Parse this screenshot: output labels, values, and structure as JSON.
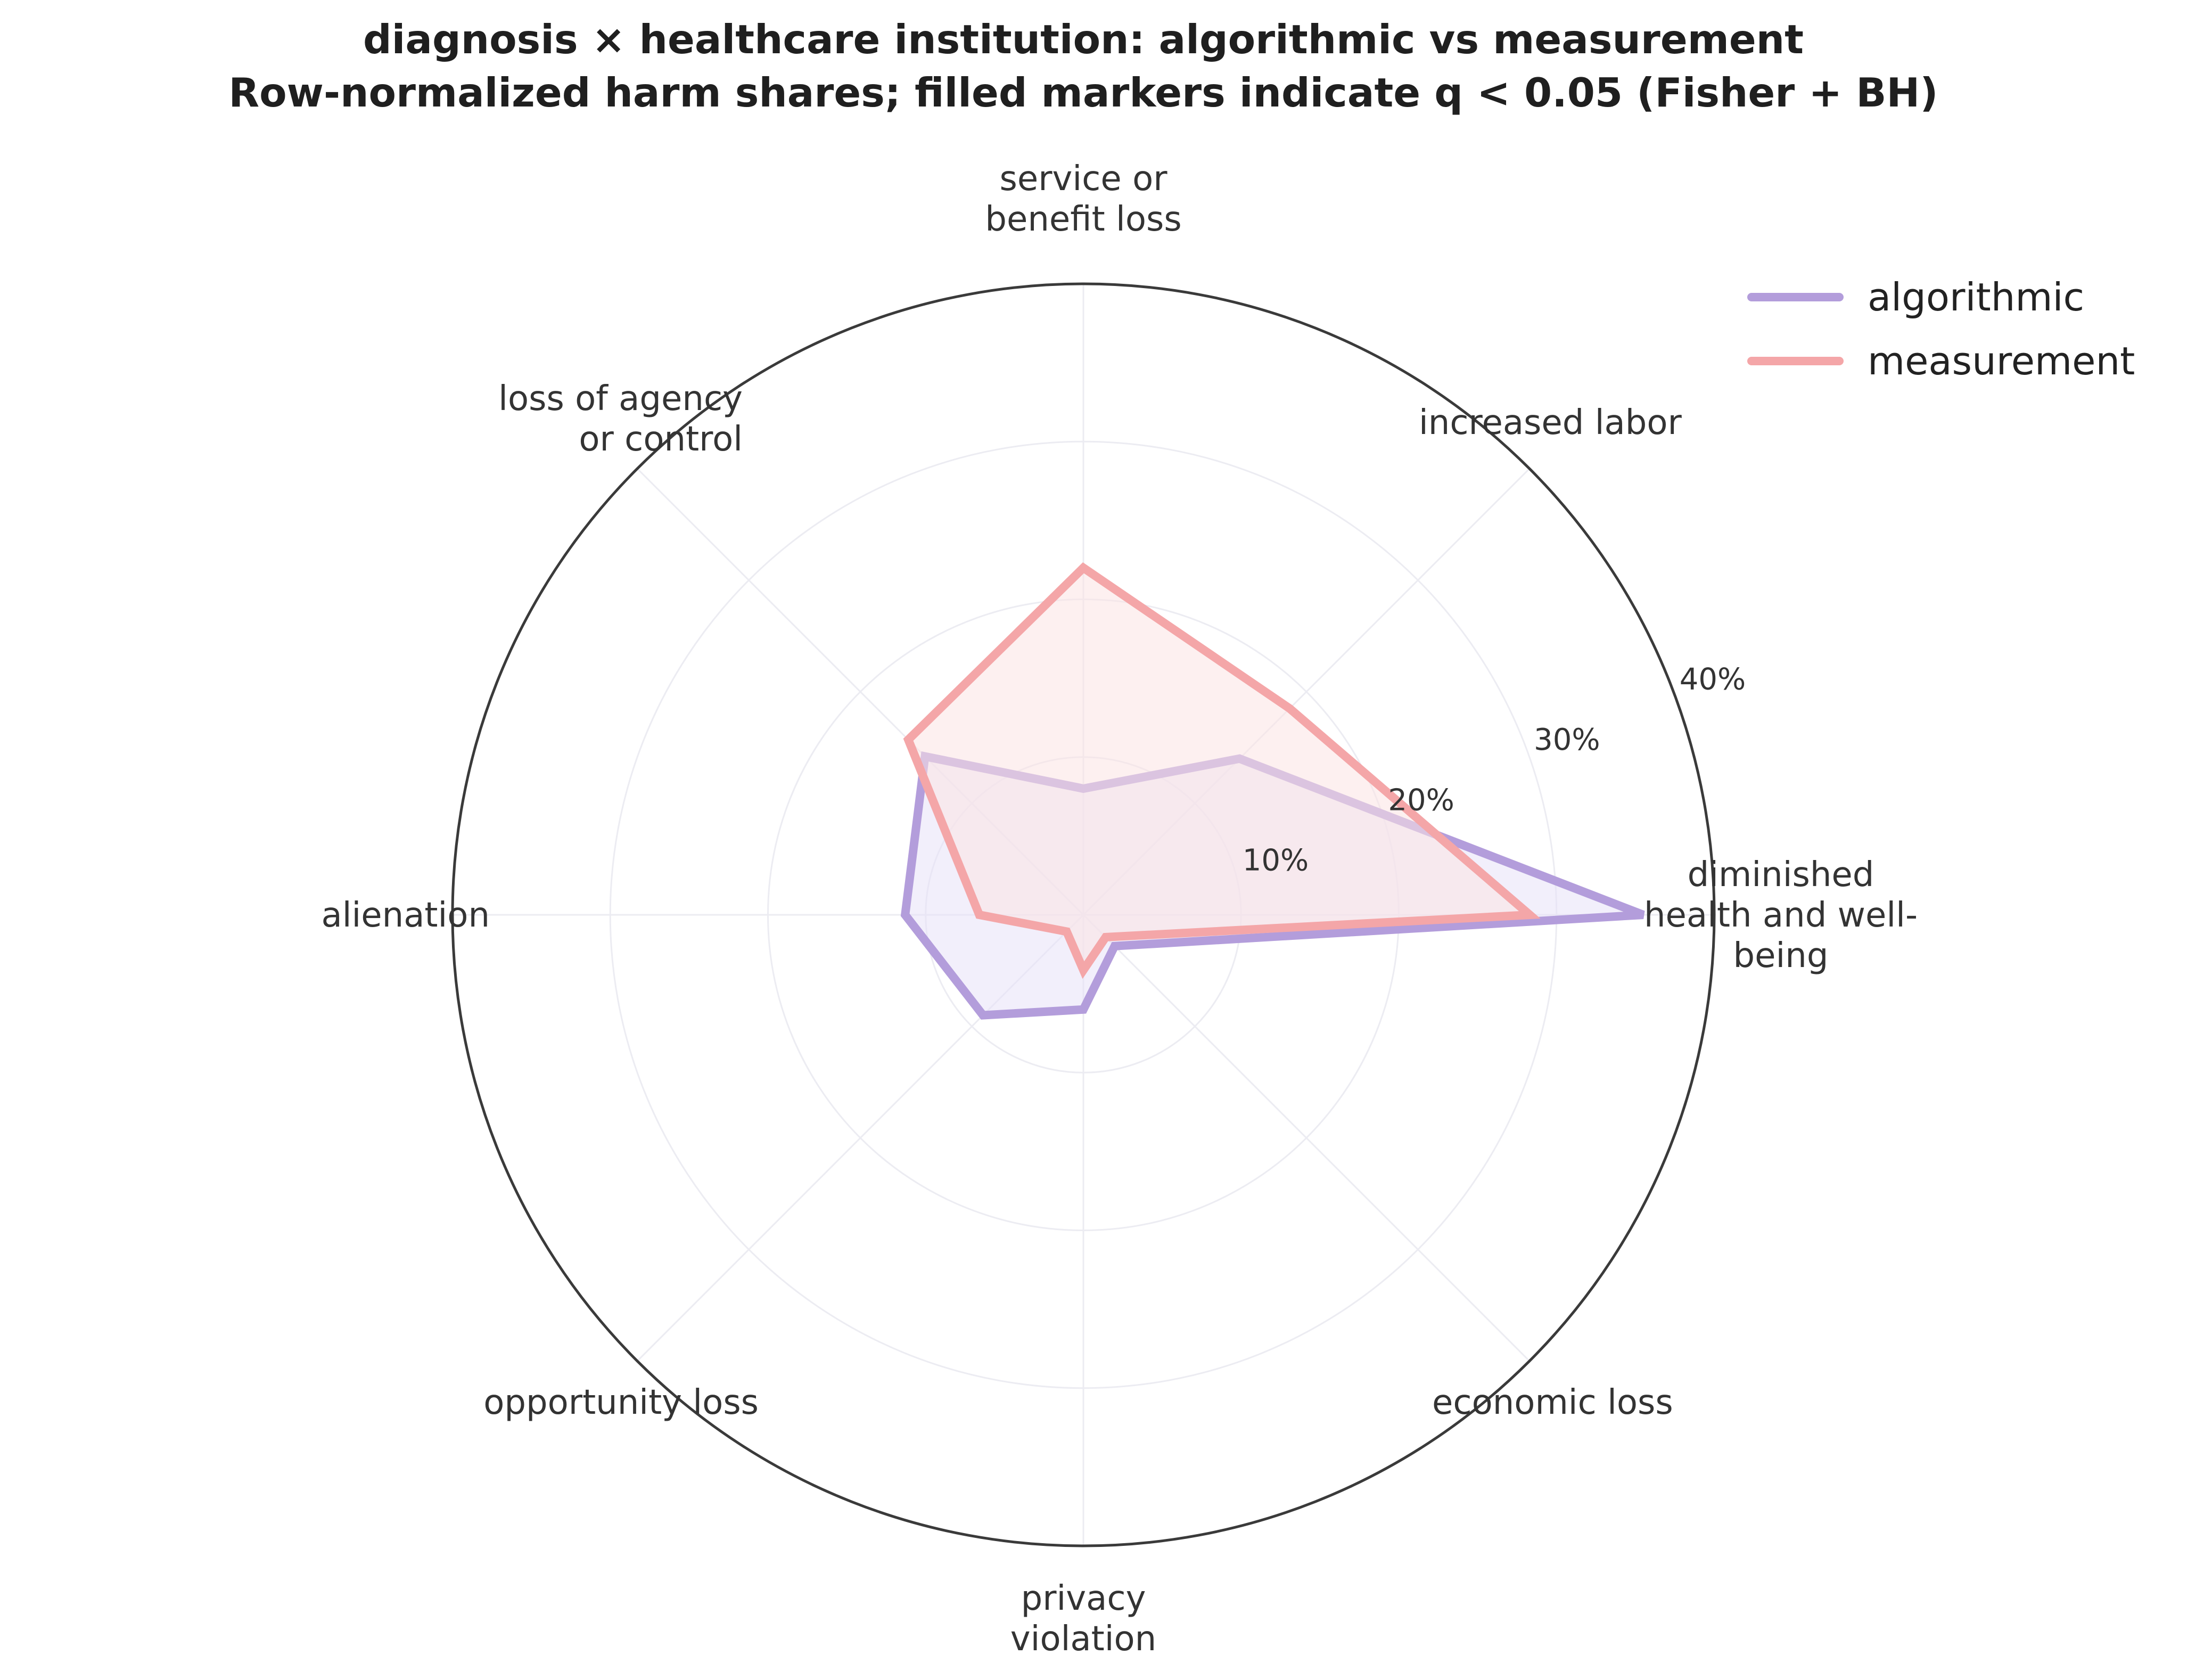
{
  "chart_data": {
    "type": "radar",
    "title_lines": [
      "diagnosis × healthcare institution: algorithmic vs measurement",
      "Row-normalized harm shares; filled markers indicate q < 0.05 (Fisher + BH)"
    ],
    "categories": [
      {
        "name": "diminished health and well-being",
        "lines": [
          "diminished",
          "health and well-",
          "being"
        ]
      },
      {
        "name": "increased labor",
        "lines": [
          "increased labor"
        ]
      },
      {
        "name": "service or benefit loss",
        "lines": [
          "service or",
          "benefit loss"
        ]
      },
      {
        "name": "loss of agency or control",
        "lines": [
          "loss of agency",
          "or control"
        ]
      },
      {
        "name": "alienation",
        "lines": [
          "alienation"
        ]
      },
      {
        "name": "opportunity loss",
        "lines": [
          "opportunity loss"
        ]
      },
      {
        "name": "privacy violation",
        "lines": [
          "privacy",
          "violation"
        ]
      },
      {
        "name": "economic loss",
        "lines": [
          "economic loss"
        ]
      }
    ],
    "r_ticks": [
      10,
      20,
      30,
      40
    ],
    "r_tick_labels": [
      "10%",
      "20%",
      "30%",
      "40%"
    ],
    "r_max": 40,
    "series": [
      {
        "name": "algorithmic",
        "color": "#b39ddb",
        "fill": "#e8e2f8",
        "values": [
          35.5,
          14,
          8,
          14.2,
          11.3,
          9,
          6,
          2.8
        ]
      },
      {
        "name": "measurement",
        "color": "#f4a6a8",
        "fill": "#fbe3e4",
        "values": [
          28.3,
          18.5,
          22,
          15.7,
          6.6,
          1.5,
          3.5,
          2
        ]
      }
    ],
    "legend": {
      "position": "top-right",
      "labels": [
        "algorithmic",
        "measurement"
      ]
    },
    "grid": true
  }
}
